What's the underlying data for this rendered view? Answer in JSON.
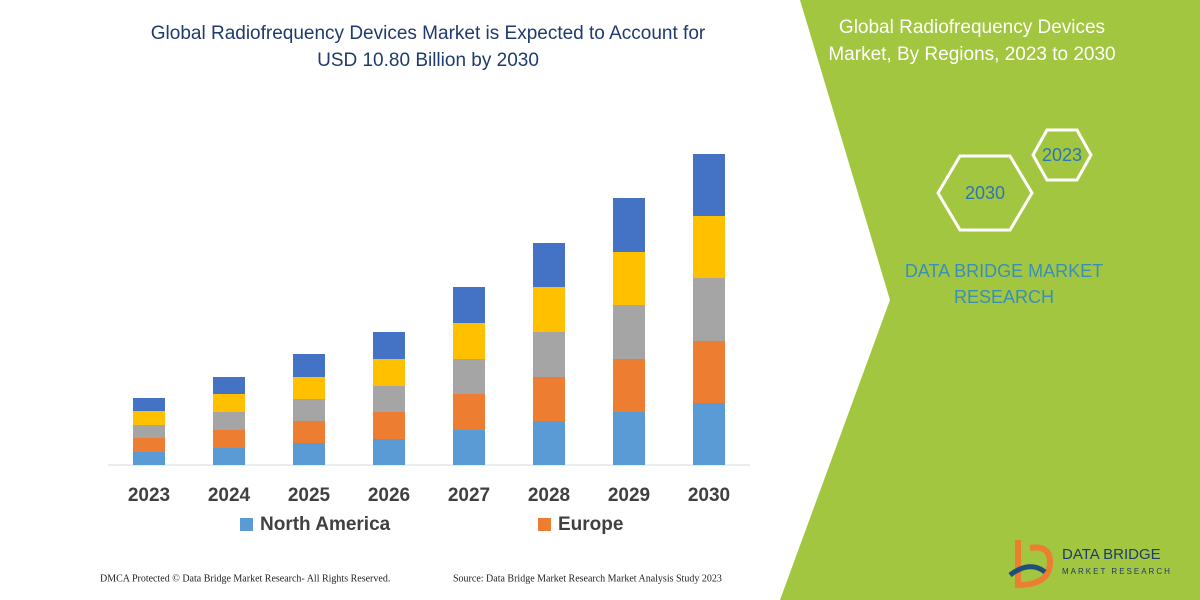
{
  "chart_data": {
    "type": "stacked_bar",
    "title": "Global Radiofrequency Devices Market is Expected to Account for USD 10.80 Billion by 2030",
    "categories": [
      "2023",
      "2024",
      "2025",
      "2026",
      "2027",
      "2028",
      "2029",
      "2030"
    ],
    "series": [
      {
        "name": "North America",
        "color": "#5b9bd5",
        "values": [
          13,
          17,
          22,
          26,
          35,
          44,
          53,
          62
        ]
      },
      {
        "name": "Europe",
        "color": "#ed7d31",
        "values": [
          14,
          18,
          22,
          27,
          36,
          44,
          53,
          62
        ]
      },
      {
        "color": "#a5a5a5",
        "values": [
          13,
          18,
          22,
          26,
          35,
          45,
          54,
          63
        ]
      },
      {
        "color": "#ffc000",
        "values": [
          14,
          18,
          22,
          27,
          36,
          45,
          53,
          62
        ]
      },
      {
        "color": "#4472c4",
        "values": [
          13,
          17,
          23,
          27,
          36,
          44,
          54,
          62
        ]
      }
    ]
  },
  "panel": {
    "title": "Global Radiofrequency Devices Market, By Regions, 2023 to 2030",
    "hex_years": [
      "2023",
      "2030"
    ],
    "brand": "DATA BRIDGE MARKET RESEARCH"
  },
  "footer": {
    "left": "DMCA Protected © Data Bridge Market Research-  All Rights Reserved.",
    "right": "Source: Data Bridge Market Research  Market Analysis Study 2023"
  },
  "logo": {
    "name": "DATA BRIDGE",
    "sub": "MARKET RESEARCH"
  }
}
